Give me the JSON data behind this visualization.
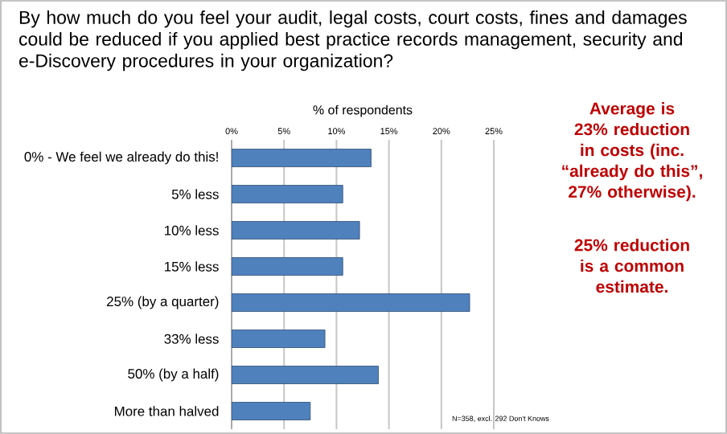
{
  "chart_data": {
    "type": "bar",
    "orientation": "horizontal",
    "title": "By how much do you feel your audit, legal costs, court costs, fines and damages could be reduced if you applied best practice records management, security and e-Discovery procedures in your organization?",
    "xlabel": "% of respondents",
    "categories": [
      "0% - We feel we already do this!",
      "5% less",
      "10% less",
      "15% less",
      "25% (by a quarter)",
      "33% less",
      "50% (by a half)",
      "More than halved"
    ],
    "values": [
      13.3,
      10.6,
      12.2,
      10.6,
      22.7,
      8.9,
      14.0,
      7.5
    ],
    "color": "#4f81bd",
    "xlim": [
      0,
      25
    ],
    "xticks": [
      {
        "value": 0,
        "label": "0%"
      },
      {
        "value": 5,
        "label": "5%"
      },
      {
        "value": 10,
        "label": "10%"
      },
      {
        "value": 15,
        "label": "15%"
      },
      {
        "value": 20,
        "label": "20%"
      },
      {
        "value": 25,
        "label": "25%"
      }
    ],
    "grid": "x",
    "legend": false,
    "annotations": [
      "Average is 23% reduction in costs (inc. “already do this”, 27% otherwise).",
      "25% reduction is a common estimate.",
      "N=358, excl. 292 Don't Knows"
    ]
  }
}
